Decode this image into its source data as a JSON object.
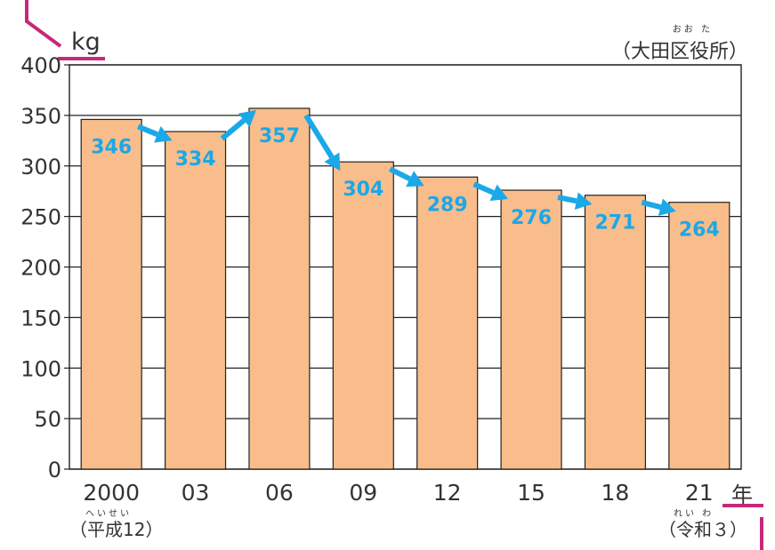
{
  "chart_data": {
    "type": "bar",
    "categories": [
      "2000",
      "03",
      "06",
      "09",
      "12",
      "15",
      "18",
      "21"
    ],
    "values": [
      346,
      334,
      357,
      304,
      289,
      276,
      271,
      264
    ],
    "data_labels": [
      "346",
      "334",
      "357",
      "304",
      "289",
      "276",
      "271",
      "264"
    ],
    "ylim": [
      0,
      400
    ],
    "yticks": [
      "0",
      "50",
      "100",
      "150",
      "200",
      "250",
      "300",
      "350",
      "400"
    ],
    "y_unit": "kg",
    "x_unit": "年",
    "source": "（大田区役所）",
    "source_ruby": "おお た",
    "first_era": "（平成12）",
    "first_era_ruby": "へいせい",
    "last_era": "（令和３）",
    "last_era_ruby": "れい わ",
    "grid": true,
    "colors": {
      "bar": "#f8bd8a",
      "label": "#1ba8e8",
      "arrow": "#1ba8e8",
      "accent": "#c8287a",
      "grid": "#222222"
    }
  }
}
